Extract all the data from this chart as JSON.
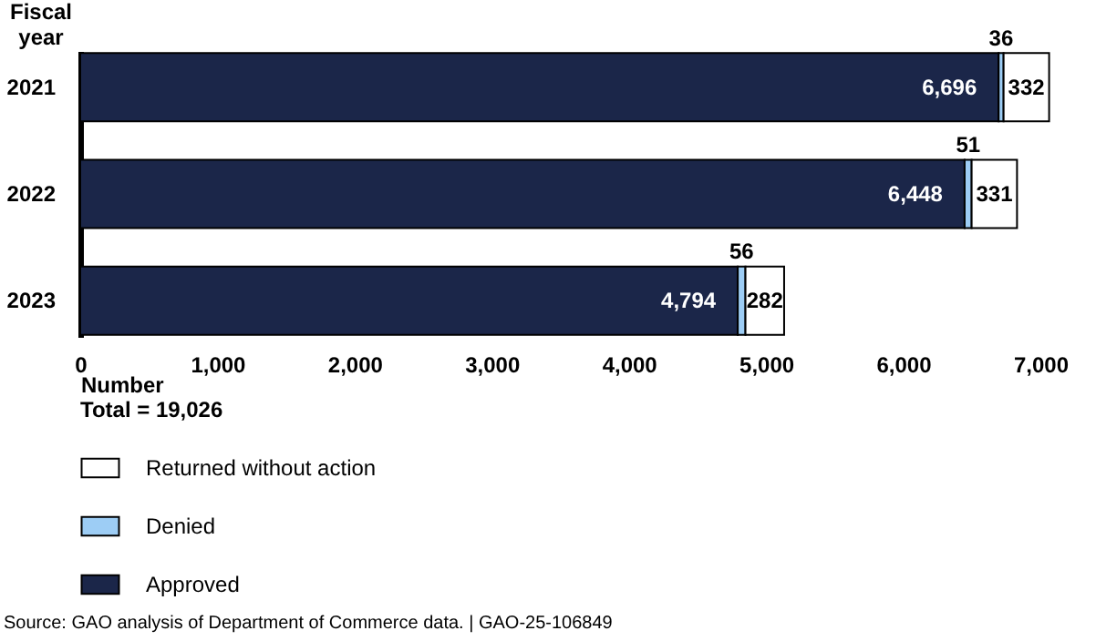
{
  "chart_data": {
    "type": "bar",
    "orientation": "horizontal",
    "stacked": true,
    "ylabel": "Fiscal year",
    "xlabel": "Number",
    "categories": [
      "2021",
      "2022",
      "2023"
    ],
    "series": [
      {
        "name": "Approved",
        "color": "#1b2649",
        "values": [
          6696,
          6448,
          4794
        ],
        "value_labels": [
          "6,696",
          "6,448",
          "4,794"
        ]
      },
      {
        "name": "Denied",
        "color": "#9dcdf5",
        "values": [
          36,
          51,
          56
        ],
        "value_labels": [
          "36",
          "51",
          "56"
        ]
      },
      {
        "name": "Returned without action",
        "color": "#ffffff",
        "values": [
          332,
          331,
          282
        ],
        "value_labels": [
          "332",
          "331",
          "282"
        ]
      }
    ],
    "xlim": [
      0,
      7100
    ],
    "xticks": [
      {
        "value": 0,
        "label": "0"
      },
      {
        "value": 1000,
        "label": "1,000"
      },
      {
        "value": 2000,
        "label": "2,000"
      },
      {
        "value": 3000,
        "label": "3,000"
      },
      {
        "value": 4000,
        "label": "4,000"
      },
      {
        "value": 5000,
        "label": "5,000"
      },
      {
        "value": 6000,
        "label": "6,000"
      },
      {
        "value": 7000,
        "label": "7,000"
      }
    ],
    "legend": "bottom left",
    "grid": false,
    "annotations": [
      "Total = 19,026",
      "Source: GAO analysis of Department of Commerce data.  |  GAO-25-106849"
    ]
  }
}
